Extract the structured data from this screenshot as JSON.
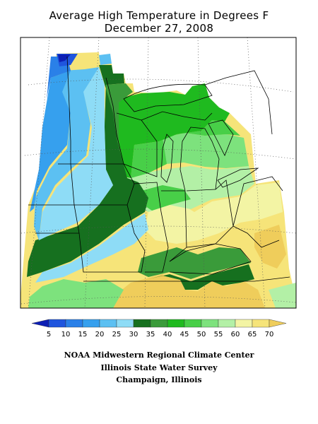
{
  "title": "Average High Temperature in Degrees F",
  "date": "December 27, 2008",
  "legend": {
    "ticks": [
      "5",
      "10",
      "15",
      "20",
      "25",
      "30",
      "35",
      "40",
      "45",
      "50",
      "55",
      "60",
      "65",
      "70"
    ],
    "colors": [
      "#0d1fb5",
      "#1f55de",
      "#2a80e8",
      "#36a0ee",
      "#5cc0f2",
      "#8edcf6",
      "#16701f",
      "#3a9b3a",
      "#1fba1f",
      "#48cf48",
      "#7de27d",
      "#b3f0a6",
      "#f3f4a4",
      "#f6e479",
      "#efcd5b"
    ]
  },
  "credits": {
    "line1": "NOAA Midwestern Regional Climate Center",
    "line2": "Illinois State Water Survey",
    "line3": "Champaign, Illinois"
  }
}
